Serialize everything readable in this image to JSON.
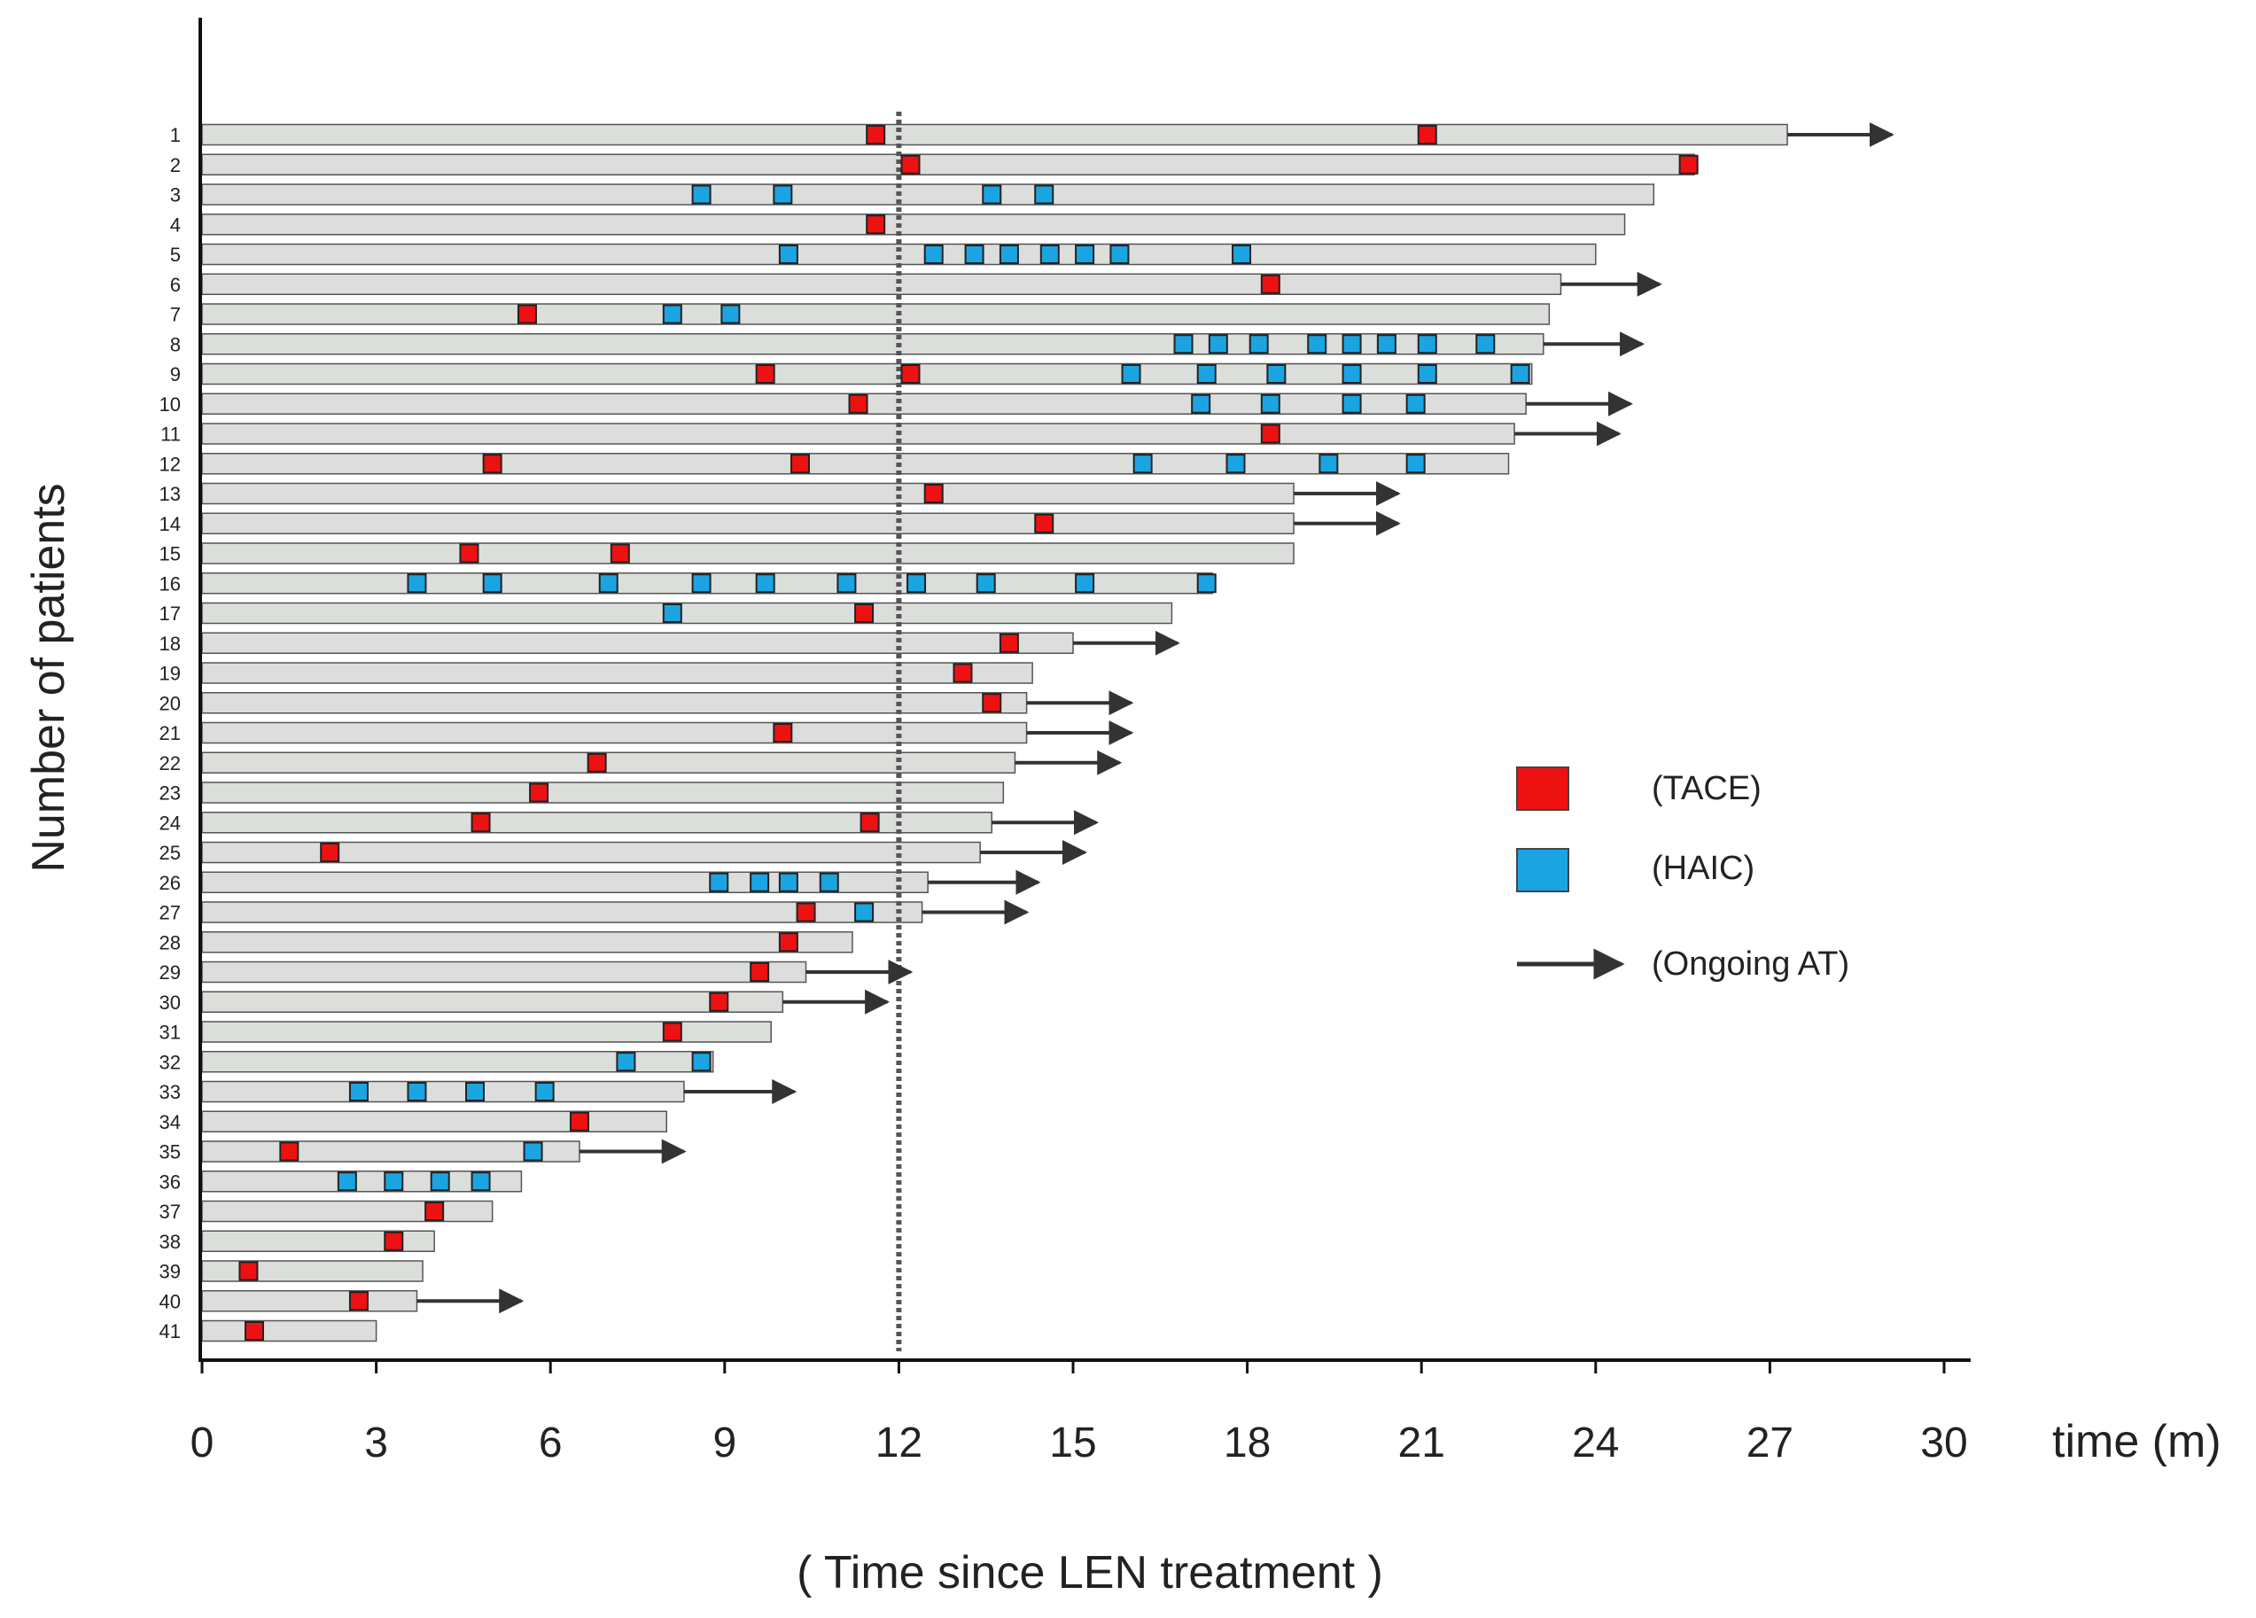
{
  "chart_data": {
    "type": "swimmer",
    "ylabel": "Number of patients",
    "xlabel": "( Time since LEN treatment )",
    "x_unit_label": "time (m)",
    "xlim": [
      0,
      30
    ],
    "xticks": [
      0,
      3,
      6,
      9,
      12,
      15,
      18,
      21,
      24,
      27,
      30
    ],
    "reference_line_x": 12,
    "legend": {
      "tace": "(TACE)",
      "haic": "(HAIC)",
      "ongoing": "(Ongoing AT)"
    },
    "colors": {
      "bar_fill": "#dcdedb",
      "bar_stroke": "#555555",
      "tace": "#ee1111",
      "haic": "#1ba4e2",
      "arrow": "#333333",
      "axis": "#111111"
    },
    "patients": [
      {
        "id": "1",
        "duration": 27.3,
        "tace": [
          11.6,
          21.1
        ],
        "haic": [],
        "ongoing": true,
        "arrow_end": 29.1
      },
      {
        "id": "2",
        "duration": 25.7,
        "tace": [
          12.2,
          25.6
        ],
        "haic": [],
        "ongoing": false
      },
      {
        "id": "3",
        "duration": 25.0,
        "tace": [],
        "haic": [
          8.6,
          10.0,
          13.6,
          14.5
        ],
        "ongoing": false
      },
      {
        "id": "4",
        "duration": 24.5,
        "tace": [
          11.6
        ],
        "haic": [],
        "ongoing": false
      },
      {
        "id": "5",
        "duration": 24.0,
        "tace": [],
        "haic": [
          10.1,
          12.6,
          13.3,
          13.9,
          14.6,
          15.2,
          15.8,
          17.9
        ],
        "ongoing": false
      },
      {
        "id": "6",
        "duration": 23.4,
        "tace": [
          18.4
        ],
        "haic": [],
        "ongoing": true,
        "arrow_end": 25.1
      },
      {
        "id": "7",
        "duration": 23.2,
        "tace": [
          5.6
        ],
        "haic": [
          8.1,
          9.1
        ],
        "ongoing": false
      },
      {
        "id": "8",
        "duration": 23.1,
        "tace": [],
        "haic": [
          16.9,
          17.5,
          18.2,
          19.2,
          19.8,
          20.4,
          21.1,
          22.1
        ],
        "ongoing": true,
        "arrow_end": 24.8
      },
      {
        "id": "9",
        "duration": 22.9,
        "tace": [
          9.7,
          12.2
        ],
        "haic": [
          16.0,
          17.3,
          18.5,
          19.8,
          21.1,
          22.7
        ],
        "ongoing": false
      },
      {
        "id": "10",
        "duration": 22.8,
        "tace": [
          11.3
        ],
        "haic": [
          17.2,
          18.4,
          19.8,
          20.9
        ],
        "ongoing": true,
        "arrow_end": 24.6
      },
      {
        "id": "11",
        "duration": 22.6,
        "tace": [
          18.4
        ],
        "haic": [],
        "ongoing": true,
        "arrow_end": 24.4
      },
      {
        "id": "12",
        "duration": 22.5,
        "tace": [
          5.0,
          10.3
        ],
        "haic": [
          16.2,
          17.8,
          19.4,
          20.9
        ],
        "ongoing": false
      },
      {
        "id": "13",
        "duration": 18.8,
        "tace": [
          12.6
        ],
        "haic": [],
        "ongoing": true,
        "arrow_end": 20.6
      },
      {
        "id": "14",
        "duration": 18.8,
        "tace": [
          14.5
        ],
        "haic": [],
        "ongoing": true,
        "arrow_end": 20.6
      },
      {
        "id": "15",
        "duration": 18.8,
        "tace": [
          4.6,
          7.2
        ],
        "haic": [],
        "ongoing": false
      },
      {
        "id": "16",
        "duration": 17.4,
        "tace": [],
        "haic": [
          3.7,
          5.0,
          7.0,
          8.6,
          9.7,
          11.1,
          12.3,
          13.5,
          15.2,
          17.3
        ],
        "ongoing": false
      },
      {
        "id": "17",
        "duration": 16.7,
        "tace": [
          11.4
        ],
        "haic": [
          8.1
        ],
        "ongoing": false
      },
      {
        "id": "18",
        "duration": 15.0,
        "tace": [
          13.9
        ],
        "haic": [],
        "ongoing": true,
        "arrow_end": 16.8
      },
      {
        "id": "19",
        "duration": 14.3,
        "tace": [
          13.1
        ],
        "haic": [],
        "ongoing": false
      },
      {
        "id": "20",
        "duration": 14.2,
        "tace": [
          13.6
        ],
        "haic": [],
        "ongoing": true,
        "arrow_end": 16.0
      },
      {
        "id": "21",
        "duration": 14.2,
        "tace": [
          10.0
        ],
        "haic": [],
        "ongoing": true,
        "arrow_end": 16.0
      },
      {
        "id": "22",
        "duration": 14.0,
        "tace": [
          6.8
        ],
        "haic": [],
        "ongoing": true,
        "arrow_end": 15.8
      },
      {
        "id": "23",
        "duration": 13.8,
        "tace": [
          5.8
        ],
        "haic": [],
        "ongoing": false
      },
      {
        "id": "24",
        "duration": 13.6,
        "tace": [
          4.8,
          11.5
        ],
        "haic": [],
        "ongoing": true,
        "arrow_end": 15.4
      },
      {
        "id": "25",
        "duration": 13.4,
        "tace": [
          2.2
        ],
        "haic": [],
        "ongoing": true,
        "arrow_end": 15.2
      },
      {
        "id": "26",
        "duration": 12.5,
        "tace": [],
        "haic": [
          8.9,
          9.6,
          10.1,
          10.8
        ],
        "ongoing": true,
        "arrow_end": 14.4
      },
      {
        "id": "27",
        "duration": 12.4,
        "tace": [
          10.4
        ],
        "haic": [
          11.4
        ],
        "ongoing": true,
        "arrow_end": 14.2
      },
      {
        "id": "28",
        "duration": 11.2,
        "tace": [
          10.1
        ],
        "haic": [],
        "ongoing": false
      },
      {
        "id": "29",
        "duration": 10.4,
        "tace": [
          9.6
        ],
        "haic": [],
        "ongoing": true,
        "arrow_end": 12.2
      },
      {
        "id": "30",
        "duration": 10.0,
        "tace": [
          8.9
        ],
        "haic": [],
        "ongoing": true,
        "arrow_end": 11.8
      },
      {
        "id": "31",
        "duration": 9.8,
        "tace": [
          8.1
        ],
        "haic": [],
        "ongoing": false
      },
      {
        "id": "32",
        "duration": 8.8,
        "tace": [],
        "haic": [
          7.3,
          8.6
        ],
        "ongoing": false
      },
      {
        "id": "33",
        "duration": 8.3,
        "tace": [],
        "haic": [
          2.7,
          3.7,
          4.7,
          5.9
        ],
        "ongoing": true,
        "arrow_end": 10.2
      },
      {
        "id": "34",
        "duration": 8.0,
        "tace": [
          6.5
        ],
        "haic": [],
        "ongoing": false
      },
      {
        "id": "35",
        "duration": 6.5,
        "tace": [
          1.5
        ],
        "haic": [
          5.7
        ],
        "ongoing": true,
        "arrow_end": 8.3
      },
      {
        "id": "36",
        "duration": 5.5,
        "tace": [],
        "haic": [
          2.5,
          3.3,
          4.1,
          4.8
        ],
        "ongoing": false
      },
      {
        "id": "37",
        "duration": 5.0,
        "tace": [
          4.0
        ],
        "haic": [],
        "ongoing": false
      },
      {
        "id": "38",
        "duration": 4.0,
        "tace": [
          3.3
        ],
        "haic": [],
        "ongoing": false
      },
      {
        "id": "39",
        "duration": 3.8,
        "tace": [
          0.8
        ],
        "haic": [],
        "ongoing": false
      },
      {
        "id": "40",
        "duration": 3.7,
        "tace": [
          2.7
        ],
        "haic": [],
        "ongoing": true,
        "arrow_end": 5.5
      },
      {
        "id": "41",
        "duration": 3.0,
        "tace": [
          0.9
        ],
        "haic": [],
        "ongoing": false
      }
    ]
  }
}
